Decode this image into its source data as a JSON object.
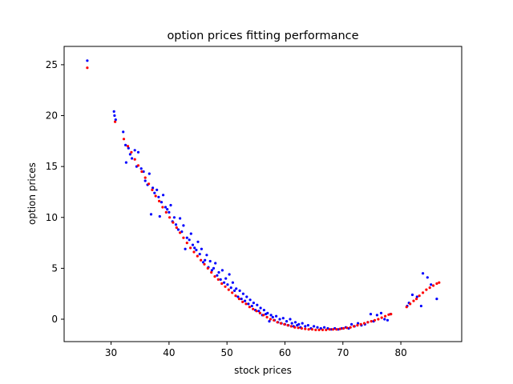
{
  "chart_data": {
    "type": "scatter",
    "title": "option prices fitting performance",
    "xlabel": "stock prices",
    "ylabel": "option prices",
    "xlim": [
      21.9,
      90.5
    ],
    "ylim": [
      -2.2,
      26.8
    ],
    "xticks": [
      30,
      40,
      50,
      60,
      70,
      80
    ],
    "yticks": [
      0,
      5,
      10,
      15,
      20,
      25
    ],
    "grid": false,
    "colors": {
      "observed": "#0000ff",
      "fitted": "#ff0000"
    },
    "series": [
      {
        "name": "",
        "color": "#0000ff",
        "points": [
          [
            25.9,
            25.4
          ],
          [
            30.5,
            20.4
          ],
          [
            30.6,
            20.0
          ],
          [
            30.8,
            19.6
          ],
          [
            32.1,
            18.4
          ],
          [
            32.5,
            17.1
          ],
          [
            32.6,
            15.4
          ],
          [
            33.0,
            16.8
          ],
          [
            33.3,
            16.2
          ],
          [
            33.6,
            15.8
          ],
          [
            34.1,
            16.6
          ],
          [
            34.4,
            15.0
          ],
          [
            34.7,
            16.4
          ],
          [
            35.2,
            14.8
          ],
          [
            35.6,
            14.5
          ],
          [
            35.9,
            13.6
          ],
          [
            36.3,
            13.2
          ],
          [
            36.6,
            14.3
          ],
          [
            36.9,
            10.3
          ],
          [
            37.2,
            12.9
          ],
          [
            37.5,
            12.4
          ],
          [
            37.9,
            12.7
          ],
          [
            38.2,
            12.0
          ],
          [
            38.4,
            10.1
          ],
          [
            38.7,
            11.5
          ],
          [
            39.0,
            12.2
          ],
          [
            39.4,
            11.0
          ],
          [
            39.7,
            10.8
          ],
          [
            40.0,
            10.5
          ],
          [
            40.3,
            11.2
          ],
          [
            40.6,
            9.6
          ],
          [
            40.9,
            10.0
          ],
          [
            41.2,
            9.3
          ],
          [
            41.6,
            8.8
          ],
          [
            41.9,
            9.9
          ],
          [
            42.2,
            8.6
          ],
          [
            42.5,
            9.2
          ],
          [
            42.8,
            6.9
          ],
          [
            43.1,
            8.0
          ],
          [
            43.5,
            7.8
          ],
          [
            43.8,
            8.4
          ],
          [
            44.1,
            7.3
          ],
          [
            44.4,
            7.0
          ],
          [
            44.7,
            6.8
          ],
          [
            45.0,
            7.6
          ],
          [
            45.3,
            6.4
          ],
          [
            45.6,
            6.9
          ],
          [
            45.9,
            5.6
          ],
          [
            46.2,
            5.8
          ],
          [
            46.5,
            6.3
          ],
          [
            46.8,
            5.1
          ],
          [
            47.1,
            5.7
          ],
          [
            47.4,
            4.8
          ],
          [
            47.7,
            5.0
          ],
          [
            48.0,
            5.5
          ],
          [
            48.3,
            4.3
          ],
          [
            48.6,
            4.6
          ],
          [
            48.9,
            3.9
          ],
          [
            49.2,
            4.8
          ],
          [
            49.5,
            3.6
          ],
          [
            49.8,
            4.0
          ],
          [
            50.1,
            3.4
          ],
          [
            50.4,
            4.4
          ],
          [
            50.7,
            3.1
          ],
          [
            51.0,
            3.6
          ],
          [
            51.3,
            2.8
          ],
          [
            51.6,
            3.0
          ],
          [
            51.9,
            2.2
          ],
          [
            52.2,
            2.8
          ],
          [
            52.5,
            2.0
          ],
          [
            52.8,
            2.5
          ],
          [
            53.1,
            1.8
          ],
          [
            53.4,
            2.2
          ],
          [
            53.7,
            1.5
          ],
          [
            54.0,
            1.9
          ],
          [
            54.3,
            1.3
          ],
          [
            54.6,
            1.6
          ],
          [
            54.9,
            0.9
          ],
          [
            55.2,
            1.4
          ],
          [
            55.5,
            0.8
          ],
          [
            55.8,
            1.1
          ],
          [
            56.1,
            0.4
          ],
          [
            56.4,
            0.9
          ],
          [
            56.7,
            0.5
          ],
          [
            57.0,
            0.6
          ],
          [
            57.3,
            -0.2
          ],
          [
            57.6,
            0.4
          ],
          [
            57.9,
            0.2
          ],
          [
            58.2,
            -0.1
          ],
          [
            58.5,
            0.3
          ],
          [
            58.8,
            -0.3
          ],
          [
            59.1,
            0.0
          ],
          [
            59.4,
            -0.4
          ],
          [
            59.7,
            0.1
          ],
          [
            60.0,
            -0.5
          ],
          [
            60.3,
            -0.2
          ],
          [
            60.6,
            -0.6
          ],
          [
            60.9,
            0.0
          ],
          [
            61.2,
            -0.4
          ],
          [
            61.5,
            -0.7
          ],
          [
            61.8,
            -0.3
          ],
          [
            62.1,
            -0.6
          ],
          [
            62.4,
            -0.5
          ],
          [
            62.7,
            -0.8
          ],
          [
            63.0,
            -0.4
          ],
          [
            63.5,
            -0.7
          ],
          [
            64.0,
            -0.6
          ],
          [
            64.5,
            -0.9
          ],
          [
            65.0,
            -0.7
          ],
          [
            65.6,
            -0.8
          ],
          [
            66.2,
            -0.9
          ],
          [
            66.8,
            -0.8
          ],
          [
            67.4,
            -0.9
          ],
          [
            68.0,
            -1.0
          ],
          [
            68.6,
            -0.9
          ],
          [
            69.2,
            -1.0
          ],
          [
            69.8,
            -0.9
          ],
          [
            70.5,
            -0.8
          ],
          [
            71.0,
            -0.9
          ],
          [
            71.5,
            -0.5
          ],
          [
            72.0,
            -0.7
          ],
          [
            72.6,
            -0.4
          ],
          [
            73.2,
            -0.6
          ],
          [
            73.8,
            -0.5
          ],
          [
            74.3,
            -0.3
          ],
          [
            74.8,
            0.5
          ],
          [
            75.3,
            -0.2
          ],
          [
            75.9,
            0.4
          ],
          [
            76.6,
            0.6
          ],
          [
            77.2,
            0.0
          ],
          [
            77.7,
            -0.1
          ],
          [
            78.2,
            0.5
          ],
          [
            81.1,
            1.3
          ],
          [
            81.4,
            1.6
          ],
          [
            82.0,
            2.4
          ],
          [
            82.8,
            2.2
          ],
          [
            83.5,
            1.3
          ],
          [
            83.8,
            4.5
          ],
          [
            84.6,
            4.1
          ],
          [
            85.2,
            3.4
          ],
          [
            86.2,
            2.0
          ]
        ]
      },
      {
        "name": "",
        "color": "#ff0000",
        "points": [
          [
            25.9,
            24.7
          ],
          [
            30.7,
            19.4
          ],
          [
            32.2,
            17.7
          ],
          [
            32.9,
            17.0
          ],
          [
            33.5,
            16.4
          ],
          [
            34.1,
            15.7
          ],
          [
            34.7,
            15.1
          ],
          [
            35.3,
            14.5
          ],
          [
            35.9,
            13.9
          ],
          [
            36.5,
            13.3
          ],
          [
            37.1,
            12.7
          ],
          [
            37.7,
            12.1
          ],
          [
            38.3,
            11.6
          ],
          [
            38.9,
            11.0
          ],
          [
            39.5,
            10.5
          ],
          [
            40.1,
            10.0
          ],
          [
            40.7,
            9.5
          ],
          [
            41.3,
            9.0
          ],
          [
            41.9,
            8.5
          ],
          [
            42.5,
            8.0
          ],
          [
            43.1,
            7.5
          ],
          [
            43.7,
            7.0
          ],
          [
            44.3,
            6.6
          ],
          [
            44.9,
            6.2
          ],
          [
            45.5,
            5.8
          ],
          [
            46.1,
            5.4
          ],
          [
            46.7,
            5.0
          ],
          [
            47.3,
            4.6
          ],
          [
            47.9,
            4.2
          ],
          [
            48.5,
            3.9
          ],
          [
            49.1,
            3.5
          ],
          [
            49.7,
            3.2
          ],
          [
            50.3,
            2.9
          ],
          [
            50.9,
            2.6
          ],
          [
            51.5,
            2.3
          ],
          [
            52.1,
            2.0
          ],
          [
            52.7,
            1.7
          ],
          [
            53.3,
            1.5
          ],
          [
            53.9,
            1.2
          ],
          [
            54.5,
            1.0
          ],
          [
            55.1,
            0.8
          ],
          [
            55.7,
            0.6
          ],
          [
            56.3,
            0.4
          ],
          [
            56.9,
            0.2
          ],
          [
            57.5,
            0.0
          ],
          [
            58.1,
            -0.1
          ],
          [
            58.7,
            -0.3
          ],
          [
            59.3,
            -0.4
          ],
          [
            59.9,
            -0.5
          ],
          [
            60.5,
            -0.6
          ],
          [
            61.1,
            -0.7
          ],
          [
            61.7,
            -0.8
          ],
          [
            62.3,
            -0.85
          ],
          [
            62.9,
            -0.9
          ],
          [
            63.5,
            -0.95
          ],
          [
            64.1,
            -1.0
          ],
          [
            64.7,
            -1.0
          ],
          [
            65.3,
            -1.05
          ],
          [
            65.9,
            -1.05
          ],
          [
            66.5,
            -1.05
          ],
          [
            67.1,
            -1.05
          ],
          [
            67.7,
            -1.0
          ],
          [
            68.3,
            -1.0
          ],
          [
            68.9,
            -1.0
          ],
          [
            69.5,
            -0.95
          ],
          [
            70.1,
            -0.9
          ],
          [
            70.7,
            -0.85
          ],
          [
            71.3,
            -0.8
          ],
          [
            71.9,
            -0.7
          ],
          [
            72.5,
            -0.6
          ],
          [
            73.1,
            -0.5
          ],
          [
            73.7,
            -0.4
          ],
          [
            74.3,
            -0.3
          ],
          [
            74.9,
            -0.2
          ],
          [
            75.5,
            -0.1
          ],
          [
            76.1,
            0.0
          ],
          [
            76.7,
            0.15
          ],
          [
            77.3,
            0.3
          ],
          [
            77.9,
            0.45
          ],
          [
            78.3,
            0.5
          ],
          [
            81.0,
            1.2
          ],
          [
            81.6,
            1.5
          ],
          [
            82.2,
            1.8
          ],
          [
            82.7,
            2.0
          ],
          [
            83.2,
            2.3
          ],
          [
            83.8,
            2.6
          ],
          [
            84.4,
            2.9
          ],
          [
            85.0,
            3.1
          ],
          [
            85.6,
            3.3
          ],
          [
            86.2,
            3.5
          ],
          [
            86.6,
            3.6
          ]
        ]
      }
    ]
  }
}
